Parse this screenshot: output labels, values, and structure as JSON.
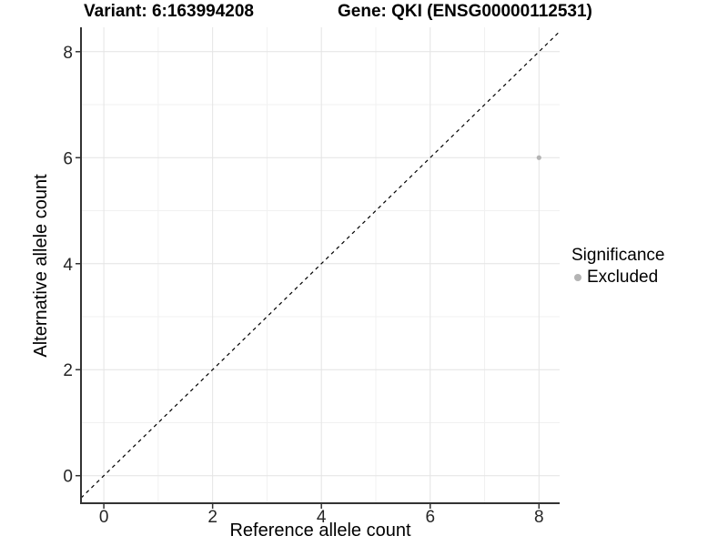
{
  "chart_data": {
    "type": "scatter",
    "title_left": "Variant: 6:163994208",
    "title_right": "Gene: QKI (ENSG00000112531)",
    "xlabel": "Reference allele count",
    "ylabel": "Alternative allele count",
    "xlim": [
      -0.42,
      8.38
    ],
    "ylim": [
      -0.52,
      8.46
    ],
    "xticks": [
      0,
      2,
      4,
      6,
      8
    ],
    "yticks": [
      0,
      2,
      4,
      6,
      8
    ],
    "minor_xticks": [
      1,
      3,
      5,
      7
    ],
    "minor_yticks": [
      1,
      3,
      5,
      7
    ],
    "grid": "major+minor",
    "reference_line": {
      "type": "identity y=x",
      "style": "dashed",
      "color": "#000000"
    },
    "series": [
      {
        "name": "Excluded",
        "marker": "circle",
        "color": "#b4b4b4",
        "points": [
          {
            "x": 8,
            "y": 6
          }
        ]
      }
    ],
    "legend": {
      "title": "Significance",
      "position": "right",
      "items": [
        {
          "label": "Excluded",
          "color": "#b4b4b4"
        }
      ]
    }
  },
  "colors": {
    "background": "#ffffff",
    "grid_major": "#e4e4e4",
    "grid_minor": "#f1f1f1",
    "axis_line": "#333333",
    "tick_mark": "#333333",
    "tick_label": "#262626",
    "point": "#b4b4b4",
    "reference_line": "#000000"
  }
}
